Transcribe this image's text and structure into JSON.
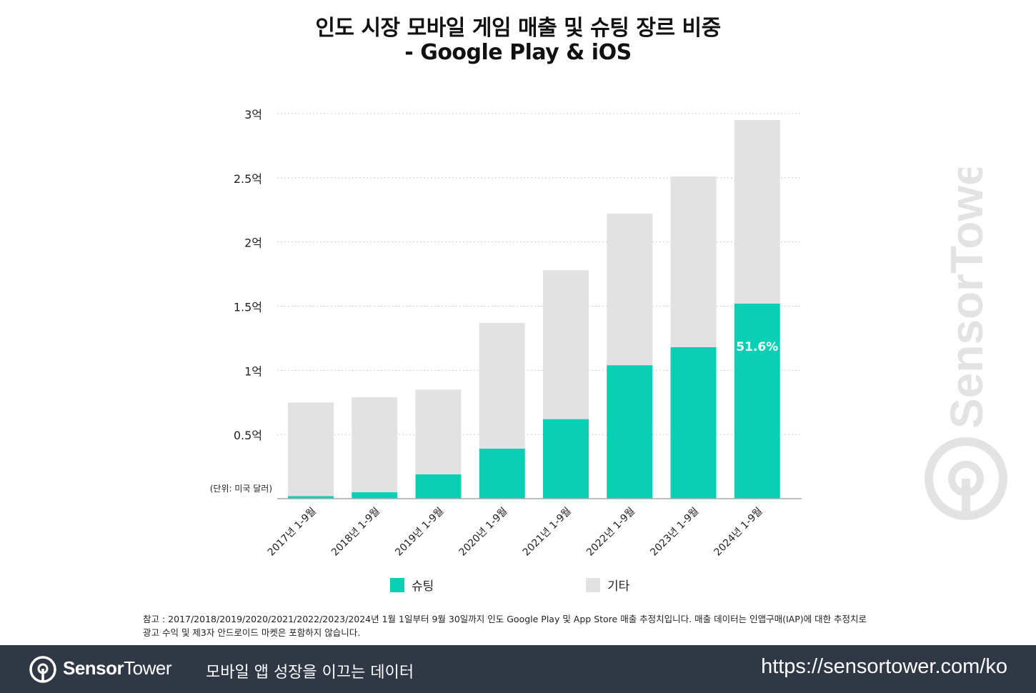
{
  "title": {
    "line1": "인도 시장 모바일 게임 매출 및 슈팅 장르 비중",
    "line2": "- Google Play & iOS"
  },
  "colors": {
    "shooting": "#0acfb5",
    "other": "#e2e2e2",
    "gridline": "#cccccc",
    "footer_bg": "#2f3844"
  },
  "chart_data": {
    "type": "bar",
    "stacked": true,
    "unit_note": "(단위: 미국 달러)",
    "categories": [
      "2017년 1-9월",
      "2018년 1-9월",
      "2019년 1-9월",
      "2020년 1-9월",
      "2021년 1-9월",
      "2022년 1-9월",
      "2023년 1-9월",
      "2024년 1-9월"
    ],
    "series": [
      {
        "name": "슈팅",
        "values": [
          0.02,
          0.05,
          0.19,
          0.39,
          0.62,
          1.04,
          1.18,
          1.52
        ]
      },
      {
        "name": "기타",
        "values": [
          0.73,
          0.74,
          0.66,
          0.98,
          1.16,
          1.18,
          1.33,
          1.43
        ]
      }
    ],
    "ylim": [
      0,
      3
    ],
    "yticks": [
      {
        "value": 3,
        "label": "3억"
      },
      {
        "value": 2.5,
        "label": "2.5억"
      },
      {
        "value": 2,
        "label": "2억"
      },
      {
        "value": 1.5,
        "label": "1.5억"
      },
      {
        "value": 1,
        "label": "1억"
      },
      {
        "value": 0.5,
        "label": "0.5억"
      }
    ],
    "annotations": [
      {
        "category": "2024년 1-9월",
        "series": "슈팅",
        "text": "51.6%"
      }
    ],
    "grid": true,
    "legend_position": "bottom"
  },
  "legend": {
    "shooting": "슈팅",
    "other": "기타"
  },
  "footnote": {
    "line1": "참고 : 2017/2018/2019/2020/2021/2022/2023/2024년 1월 1일부터 9월 30일까지 인도 Google Play 및 App Store 매출 추정치입니다. 매출 데이터는 인앱구매(IAP)에 대한 추정치로",
    "line2": "광고 수익 및 제3자 안드로이드 마켓은 포함하지 않습니다."
  },
  "footer": {
    "brand_bold": "Sensor",
    "brand_light": "Tower",
    "tagline": "모바일 앱 성장을 이끄는 데이터",
    "url": "https://sensortower.com/ko"
  },
  "watermark": {
    "brand": "SensorTower",
    "icon": "sensortower-logo-icon"
  }
}
